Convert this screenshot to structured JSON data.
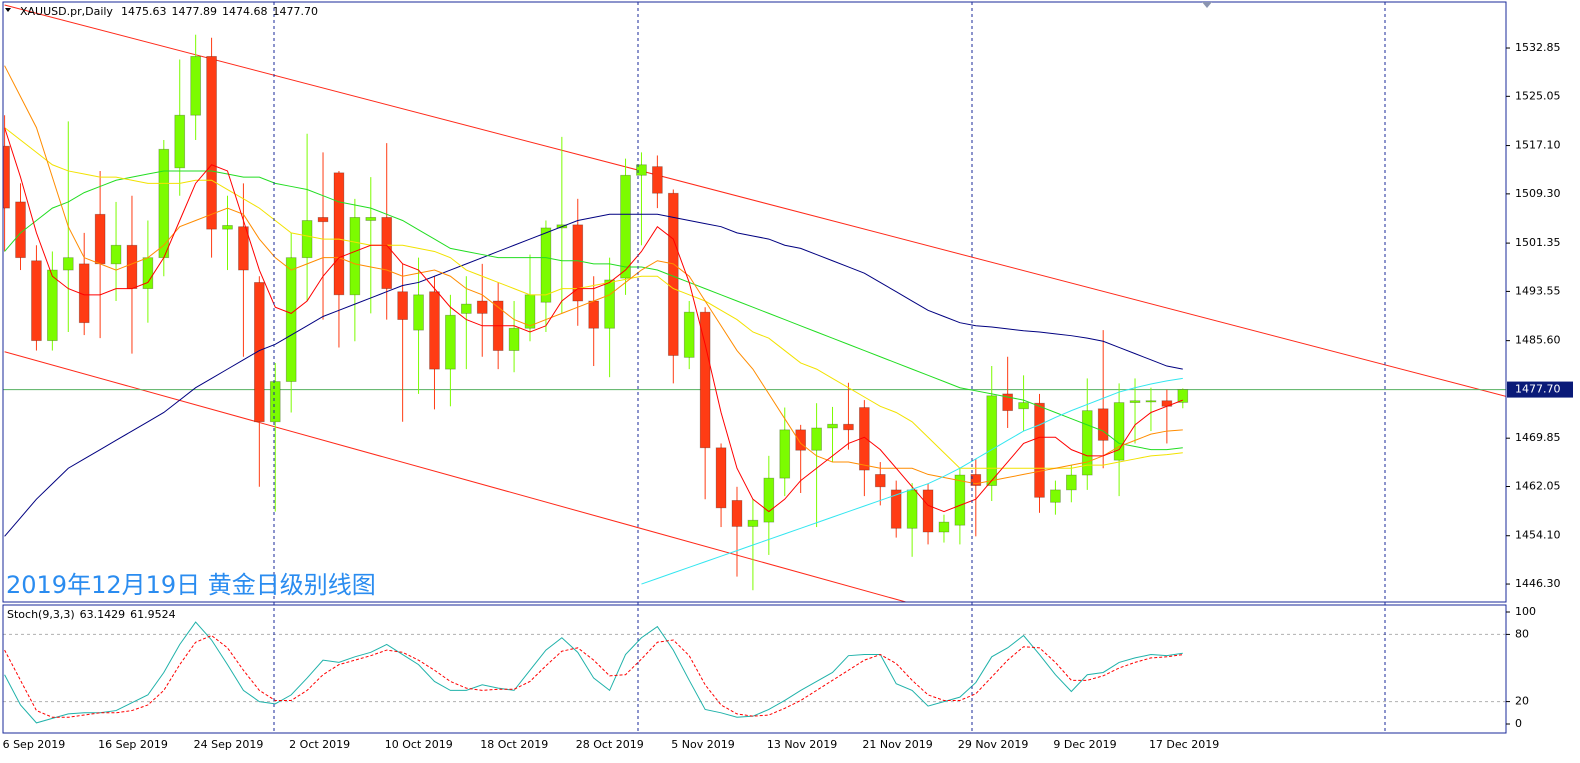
{
  "chart_data": [
    {
      "type": "candlestick",
      "title": "XAUUSD.pr,Daily",
      "annotation": "2019年12月19日 黄金日级别线图",
      "categories": [
        "6 Sep 2019",
        null,
        null,
        null,
        null,
        null,
        "16 Sep 2019",
        null,
        null,
        null,
        null,
        null,
        "24 Sep 2019",
        null,
        null,
        null,
        null,
        null,
        "2 Oct 2019",
        null,
        null,
        null,
        null,
        null,
        "10 Oct 2019",
        null,
        null,
        null,
        null,
        null,
        "18 Oct 2019",
        null,
        null,
        null,
        null,
        null,
        "28 Oct 2019",
        null,
        null,
        null,
        null,
        null,
        "5 Nov 2019",
        null,
        null,
        null,
        null,
        null,
        "13 Nov 2019",
        null,
        null,
        null,
        null,
        null,
        "21 Nov 2019",
        null,
        null,
        null,
        null,
        null,
        "29 Nov 2019",
        null,
        null,
        null,
        null,
        null,
        "9 Dec 2019",
        null,
        null,
        null,
        null,
        null,
        "17 Dec 2019",
        null,
        null
      ],
      "open": [
        1517,
        1508,
        1498.5,
        1485.6,
        1497,
        1498,
        1506,
        1498,
        1501,
        1494,
        1499,
        1513.5,
        1522,
        1531.5,
        1503.6,
        1504,
        1495,
        1472.5,
        1479,
        1499,
        1505.5,
        1512.7,
        1493,
        1505,
        1505.5,
        1493.5,
        1487.3,
        1493.5,
        1481,
        1490,
        1492,
        1492,
        1484,
        1487.6,
        1491.8,
        1503.8,
        1504.3,
        1492,
        1487.6,
        1495.7,
        1512.3,
        1513.7,
        1509.4,
        1482.9,
        1490.2,
        1468.3,
        1459.8,
        1455.6,
        1456.3,
        1463.4,
        1471.2,
        1467.9,
        1471.5,
        1472.1,
        1474.8,
        1464,
        1461.5,
        1455.3,
        1461.5,
        1454.7,
        1455.8,
        1464,
        1462.2,
        1477,
        1474.6,
        1475.5,
        1459.5,
        1461.5,
        1463.9,
        1474.6,
        1466.3,
        1475.6,
        1475.7,
        1475.9,
        1475.63
      ],
      "high": [
        1522,
        1511,
        1501,
        1500,
        1521,
        1503,
        1513,
        1508,
        1509,
        1505,
        1518,
        1531,
        1535,
        1534.5,
        1509,
        1511,
        1496,
        1482,
        1503,
        1519,
        1516,
        1513,
        1508.5,
        1512,
        1517.5,
        1498,
        1499,
        1496,
        1493,
        1496,
        1498,
        1495,
        1492,
        1499.5,
        1505,
        1518.5,
        1508.5,
        1496,
        1499,
        1515,
        1516,
        1515.5,
        1510,
        1492,
        1491,
        1469,
        1462,
        1460,
        1467,
        1474.8,
        1472,
        1475.5,
        1474.9,
        1478.8,
        1476,
        1466,
        1463,
        1462.6,
        1462.5,
        1457.5,
        1465,
        1466.5,
        1481.5,
        1483,
        1480,
        1477,
        1463,
        1465.5,
        1479.5,
        1487.3,
        1478.7,
        1479.5,
        1478,
        1477.7,
        1477.89
      ],
      "low": [
        1500,
        1497,
        1484,
        1484,
        1487,
        1486.5,
        1486,
        1492,
        1483.5,
        1488.5,
        1496,
        1509,
        1518,
        1499,
        1497,
        1483,
        1462,
        1458,
        1474,
        1492,
        1489,
        1484.5,
        1485.5,
        1490,
        1489,
        1472.5,
        1477,
        1474.5,
        1475,
        1481,
        1483,
        1481,
        1480.5,
        1485.5,
        1487,
        1490,
        1488,
        1481.5,
        1479.7,
        1493,
        1501,
        1507,
        1478.7,
        1481,
        1460,
        1455.5,
        1447.5,
        1445.3,
        1451,
        1460.5,
        1461,
        1455.5,
        1466,
        1468,
        1460.5,
        1459,
        1453.8,
        1450.7,
        1452.7,
        1453,
        1452.7,
        1454,
        1459.7,
        1471.5,
        1471,
        1457.8,
        1457.5,
        1459.5,
        1461.5,
        1465,
        1460.5,
        1469,
        1471,
        1469,
        1474.68
      ],
      "close": [
        1507,
        1499,
        1485.6,
        1497,
        1499,
        1488.5,
        1498,
        1501,
        1494,
        1499,
        1516.5,
        1522,
        1531.5,
        1503.6,
        1504.2,
        1497,
        1472.5,
        1479,
        1499,
        1505,
        1504.8,
        1493,
        1505.5,
        1505.5,
        1494,
        1489,
        1493,
        1481,
        1489.7,
        1491.5,
        1490,
        1484,
        1487.6,
        1493,
        1503.8,
        1504.3,
        1492,
        1487.6,
        1495.4,
        1512.3,
        1514,
        1509.4,
        1483.2,
        1490.2,
        1468.3,
        1458.6,
        1455.6,
        1456.6,
        1463.4,
        1471.2,
        1467.9,
        1471.5,
        1472.1,
        1471.2,
        1464.7,
        1462,
        1455.3,
        1461.5,
        1454.7,
        1456.3,
        1463.9,
        1462.2,
        1476.7,
        1474.3,
        1475.6,
        1460.3,
        1461.5,
        1463.9,
        1474.3,
        1469.5,
        1475.6,
        1475.9,
        1475.9,
        1475,
        1477.7
      ],
      "up_color": "#7cfc00",
      "down_color": "#ff3c14",
      "xlim": [
        -0.1,
        94.3
      ],
      "ylim": [
        1443.4,
        1540.28
      ],
      "yticks": [
        1532.85,
        1525.05,
        {
          "value": 1517.1,
          "label": "1517.10"
        },
        {
          "value": 1509.3,
          "label": "1509.30"
        },
        1501.35,
        1493.55,
        {
          "value": 1485.6,
          "label": "1485.60"
        },
        1469.85,
        1462.05,
        {
          "value": 1454.1,
          "label": "1454.10"
        },
        {
          "value": 1446.3,
          "label": "1446.30"
        }
      ],
      "grid": false,
      "price_line": {
        "value": 1477.7,
        "label": "1477.70",
        "color": "#55b060",
        "box_color": "#0a1a78"
      },
      "overlays": [
        {
          "color": "#000080",
          "values": [
            1454,
            1457,
            1460,
            1462.5,
            1465,
            1466.5,
            1468,
            1469.5,
            1471,
            1472.5,
            1474,
            1476,
            1478,
            1479.5,
            1481,
            1482.5,
            1484,
            1485,
            1486.5,
            1488,
            1489.5,
            1490.5,
            1491.5,
            1492.5,
            1493.5,
            1494.5,
            1495,
            1496,
            1497,
            1498,
            1499,
            1500,
            1501,
            1502,
            1503,
            1504,
            1505,
            1505.5,
            1506,
            1506,
            1506,
            1506,
            1505.5,
            1505,
            1504.5,
            1504,
            1503,
            1502.5,
            1502,
            1501,
            1500.5,
            1499.5,
            1498.5,
            1497.5,
            1496.5,
            1495,
            1493.5,
            1492,
            1490.5,
            1489.5,
            1488.5,
            1488,
            1487.8,
            1487.5,
            1487.2,
            1487,
            1486.7,
            1486.4,
            1486,
            1485.5,
            1484.5,
            1483.5,
            1482.5,
            1481.5,
            1481
          ]
        },
        {
          "color": "#22dd22",
          "values": [
            1500,
            1503,
            1505,
            1507,
            1508,
            1509.5,
            1510.5,
            1511.5,
            1512,
            1512.5,
            1513,
            1513,
            1513,
            1513,
            1512.5,
            1512,
            1512,
            1511,
            1510.5,
            1510,
            1509,
            1508,
            1507.5,
            1507,
            1506,
            1505,
            1503.5,
            1502,
            1500.5,
            1500,
            1499.5,
            1499,
            1499,
            1499,
            1499,
            1498.5,
            1498.5,
            1498,
            1498,
            1497.5,
            1497.5,
            1497,
            1496,
            1495,
            1494,
            1493,
            1492,
            1491,
            1490,
            1489,
            1488,
            1487,
            1486,
            1485,
            1484,
            1483,
            1482,
            1481,
            1480,
            1479,
            1478,
            1477.5,
            1477,
            1476.5,
            1476,
            1475,
            1474,
            1473,
            1472,
            1471,
            1469,
            1468.5,
            1468,
            1468,
            1468.3
          ]
        },
        {
          "color": "#f2e200",
          "values": [
            1520,
            1518,
            1516,
            1514,
            1513,
            1512.5,
            1512,
            1512,
            1511.5,
            1511,
            1511,
            1511,
            1511.5,
            1511.5,
            1510,
            1508.5,
            1507,
            1505,
            1503,
            1502.5,
            1502,
            1502,
            1501.5,
            1501,
            1501,
            1501,
            1500.5,
            1500,
            1499,
            1497,
            1496,
            1495,
            1494,
            1493,
            1493,
            1494,
            1494,
            1494.5,
            1495,
            1495.5,
            1496,
            1496,
            1494,
            1493,
            1492,
            1490.5,
            1489,
            1487,
            1486,
            1484,
            1482,
            1481,
            1479.5,
            1478,
            1476.5,
            1475,
            1474,
            1472.5,
            1470,
            1467.5,
            1465,
            1465,
            1465,
            1465,
            1465,
            1465,
            1465,
            1465,
            1465.5,
            1465.5,
            1466,
            1466.5,
            1467,
            1467.2,
            1467.5
          ]
        },
        {
          "color": "#ff8c00",
          "values": [
            1530,
            1525,
            1520,
            1512,
            1504,
            1499,
            1498,
            1497,
            1498,
            1499,
            1501,
            1504,
            1505,
            1506,
            1507,
            1506,
            1502,
            1499,
            1497,
            1498,
            1499,
            1499,
            1498,
            1497.5,
            1497,
            1496,
            1496.5,
            1497,
            1496,
            1494,
            1493,
            1491,
            1489,
            1488,
            1489,
            1490,
            1491,
            1492,
            1493,
            1495,
            1497,
            1498.5,
            1498,
            1496,
            1492,
            1488,
            1484,
            1481,
            1477,
            1473,
            1469,
            1467,
            1466,
            1466,
            1465.5,
            1465,
            1465,
            1465,
            1464,
            1463.5,
            1463,
            1462.5,
            1463,
            1463.5,
            1464,
            1464.5,
            1465,
            1465.5,
            1466,
            1467,
            1468.5,
            1469.5,
            1470.5,
            1471,
            1471.2
          ]
        },
        {
          "color": "#ff0000",
          "values": [
            1520,
            1512,
            1503,
            1496,
            1494,
            1493,
            1493,
            1494,
            1494,
            1495,
            1499,
            1505,
            1511,
            1514,
            1513,
            1505,
            1497,
            1491,
            1490,
            1492,
            1496,
            1499,
            1500,
            1501,
            1501,
            1498,
            1497,
            1494,
            1491,
            1489,
            1488,
            1488,
            1488,
            1487,
            1488,
            1492,
            1494,
            1494,
            1495,
            1497,
            1500,
            1504,
            1502,
            1495,
            1485,
            1474,
            1465,
            1460,
            1458,
            1460,
            1463,
            1465,
            1467,
            1469,
            1470,
            1468,
            1465,
            1462,
            1459,
            1458,
            1459,
            1460,
            1463,
            1466,
            1469,
            1470,
            1470,
            1468,
            1467,
            1467,
            1468,
            1472,
            1474,
            1475,
            1476
          ]
        },
        {
          "color": "#33e6f0",
          "values": [
            null,
            null,
            null,
            null,
            null,
            null,
            null,
            null,
            null,
            null,
            null,
            null,
            null,
            null,
            null,
            null,
            null,
            null,
            null,
            null,
            null,
            null,
            null,
            null,
            null,
            null,
            null,
            null,
            null,
            null,
            null,
            null,
            null,
            null,
            null,
            null,
            null,
            null,
            null,
            null,
            1446.3,
            1447.2,
            1448.1,
            1449,
            1449.9,
            1450.8,
            1451.7,
            1452.6,
            1453.5,
            1454.4,
            1455.3,
            1456.2,
            1457.1,
            1458,
            1458.9,
            1459.8,
            1460.7,
            1461.6,
            1462.5,
            1463.7,
            1465,
            1466.5,
            1468,
            1469.5,
            1471,
            1472,
            1473.2,
            1474.3,
            1475.3,
            1476.3,
            1477.3,
            1478,
            1478.6,
            1479.1,
            1479.5
          ]
        }
      ],
      "trendlines": [
        {
          "color": "#ff2a1a",
          "x": [
            0,
            94.3
          ],
          "y": [
            1539.8,
            1476.6
          ]
        },
        {
          "color": "#ff2a1a",
          "x": [
            0,
            94.3
          ],
          "y": [
            1483.8,
            1416.5
          ]
        }
      ]
    },
    {
      "type": "line",
      "title": "Stoch(9,3,3)",
      "ylim": [
        -8.04,
        106.25
      ],
      "yticks": [
        100,
        80,
        20,
        0
      ],
      "levels": [
        80,
        20
      ],
      "series": [
        {
          "color": "#20b2aa",
          "dashed": false,
          "values": [
            44,
            17,
            1,
            5,
            9,
            10,
            10,
            12,
            19,
            26,
            46,
            71,
            91,
            75,
            53,
            30,
            20,
            18,
            26,
            41,
            57,
            55,
            60,
            64,
            71,
            62,
            53,
            38,
            30,
            30,
            35,
            32,
            30,
            48,
            66,
            77,
            64,
            41,
            30,
            62,
            77,
            87,
            66,
            39,
            13,
            10,
            6,
            7,
            13,
            21,
            30,
            38,
            46,
            61,
            62,
            62,
            36,
            30,
            16,
            20,
            24,
            37,
            60,
            68,
            79,
            62,
            44,
            29,
            44,
            46,
            55,
            59,
            62,
            61,
            63.1429
          ]
        },
        {
          "color": "#ff0000",
          "dashed": true,
          "values": [
            66,
            39,
            12,
            6,
            6,
            8,
            10,
            10,
            12,
            17,
            30,
            53,
            73,
            79,
            68,
            48,
            30,
            21,
            21,
            30,
            44,
            53,
            57,
            61,
            66,
            64,
            57,
            48,
            38,
            32,
            30,
            31,
            31,
            38,
            52,
            65,
            68,
            57,
            43,
            44,
            58,
            73,
            75,
            61,
            35,
            17,
            9,
            7,
            8,
            14,
            21,
            30,
            39,
            48,
            57,
            62,
            54,
            39,
            26,
            21,
            21,
            27,
            42,
            57,
            69,
            68,
            55,
            39,
            39,
            43,
            50,
            55,
            59,
            60,
            61.9524
          ]
        }
      ]
    }
  ]
}
